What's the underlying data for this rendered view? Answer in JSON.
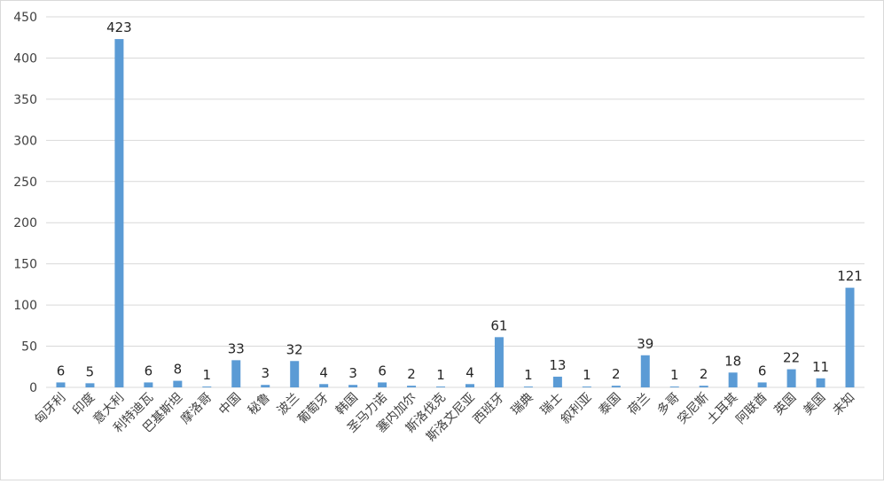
{
  "chart_data": {
    "type": "bar",
    "categories": [
      "匈牙利",
      "印度",
      "意大利",
      "利特迪瓦",
      "巴基斯坦",
      "摩洛哥",
      "中国",
      "秘鲁",
      "波兰",
      "葡萄牙",
      "韩国",
      "圣马力诺",
      "塞内加尔",
      "斯洛伐克",
      "斯洛文尼亚",
      "西班牙",
      "瑞典",
      "瑞士",
      "叙利亚",
      "泰国",
      "荷兰",
      "多哥",
      "突尼斯",
      "土耳其",
      "阿联酋",
      "英国",
      "美国",
      "未知"
    ],
    "values": [
      6,
      5,
      423,
      6,
      8,
      1,
      33,
      3,
      32,
      4,
      3,
      6,
      2,
      1,
      4,
      61,
      1,
      13,
      1,
      2,
      39,
      1,
      2,
      18,
      6,
      22,
      11,
      121
    ],
    "color": "#5b9bd5",
    "ylim": [
      0,
      450
    ],
    "yticks": [
      0,
      50,
      100,
      150,
      200,
      250,
      300,
      350,
      400,
      450
    ],
    "grid": true
  }
}
